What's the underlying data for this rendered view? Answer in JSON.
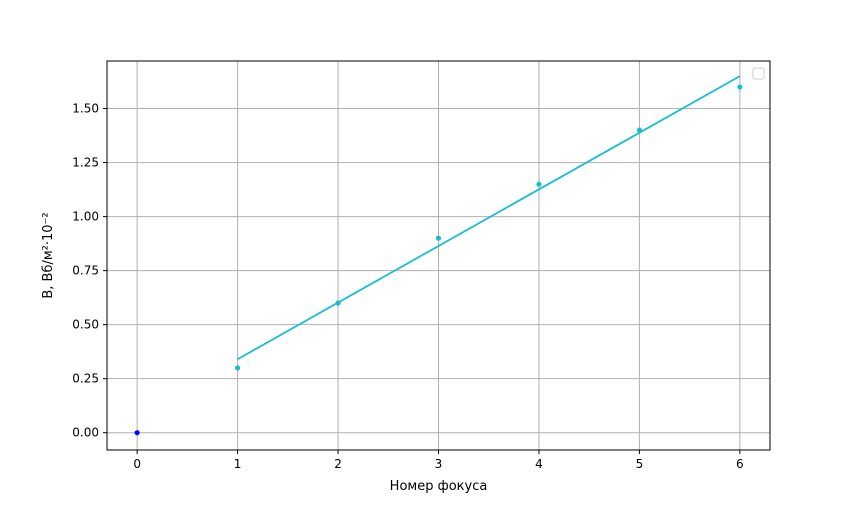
{
  "chart_data": {
    "type": "scatter",
    "xlabel": "Номер фокуса",
    "ylabel": "B, Вб/м²·10⁻²",
    "xlim": [
      -0.3,
      6.3
    ],
    "ylim": [
      -0.08,
      1.72
    ],
    "xticks": [
      0,
      1,
      2,
      3,
      4,
      5,
      6
    ],
    "yticks": [
      0.0,
      0.25,
      0.5,
      0.75,
      1.0,
      1.25,
      1.5
    ],
    "ytick_labels": [
      "0.00",
      "0.25",
      "0.50",
      "0.75",
      "1.00",
      "1.25",
      "1.50"
    ],
    "grid": true,
    "legend": {
      "placement": "top-right",
      "entries": []
    },
    "series": [
      {
        "type": "scatter",
        "color": "#0000ff",
        "x": [
          0
        ],
        "y": [
          0.0
        ]
      },
      {
        "type": "scatter",
        "color": "#17becf",
        "x": [
          1,
          2,
          3,
          4,
          5,
          6
        ],
        "y": [
          0.3,
          0.6,
          0.9,
          1.15,
          1.4,
          1.6
        ]
      },
      {
        "type": "line",
        "color": "#17becf",
        "x": [
          1,
          6
        ],
        "y": [
          0.34,
          1.65
        ]
      }
    ]
  }
}
